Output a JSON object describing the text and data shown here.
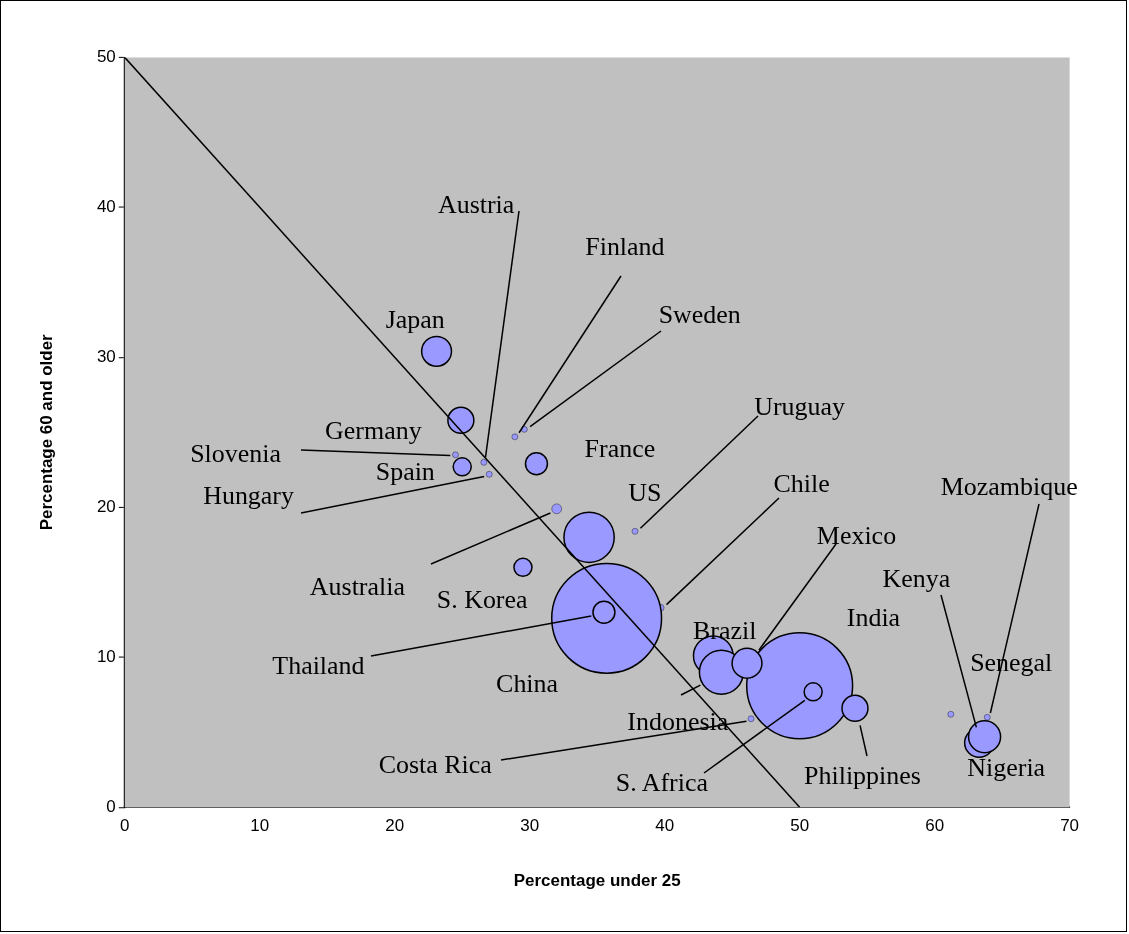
{
  "chart_data": {
    "type": "bubble",
    "xlabel": "Percentage under 25",
    "ylabel": "Percentage 60 and older",
    "xlim": [
      0,
      70
    ],
    "ylim": [
      0,
      50
    ],
    "xticks": [
      0,
      10,
      20,
      30,
      40,
      50,
      60,
      70
    ],
    "yticks": [
      0,
      10,
      20,
      30,
      40,
      50
    ],
    "grid": false,
    "series": [
      {
        "color": "#9999ff",
        "x": [
          24.5,
          25.0,
          46.4,
          39.7,
          35.7,
          50.0,
          23.1,
          24.9,
          26.6,
          27.0,
          28.9,
          29.6,
          30.5,
          32.0,
          34.4,
          37.8,
          29.5,
          35.5,
          43.6,
          44.2,
          46.1,
          51.0,
          54.1,
          61.2,
          63.3,
          63.9,
          63.7
        ],
        "values": [
          23.5,
          22.7,
          5.9,
          13.3,
          12.6,
          8.1,
          30.4,
          25.8,
          23.0,
          22.2,
          24.7,
          25.2,
          22.9,
          19.9,
          18.0,
          18.4,
          16.0,
          13.0,
          10.1,
          9.0,
          9.6,
          7.7,
          6.6,
          6.2,
          4.3,
          6.0,
          4.7
        ],
        "sizes": [
          0.003,
          0.027,
          0.003,
          0.004,
          1,
          0.93,
          0.074,
          0.056,
          0.003,
          0.003,
          0.003,
          0.003,
          0.04,
          0.008,
          0.21,
          0.003,
          0.027,
          0.04,
          0.13,
          0.16,
          0.074,
          0.027,
          0.056,
          0.003,
          0.07,
          0.003,
          0.085
        ],
        "value_labels": [
          "Slovenia",
          "Spain",
          "Costa Rica",
          "Chile",
          "China",
          "India",
          "Japan",
          "Germany",
          "Austria",
          "Hungary",
          "Finland",
          "Sweden",
          "France",
          "Australia",
          "US",
          "Uruguay",
          "S. Korea",
          "Thailand",
          "Brazil",
          "Indonesia",
          "Mexico",
          "S. Africa",
          "Philippines",
          "Senegal",
          "Kenya",
          "Mozambique",
          "Nigeria"
        ]
      },
      {
        "type": "line",
        "color": "#000000",
        "x": [
          0,
          50
        ],
        "values": [
          50,
          0
        ]
      }
    ]
  }
}
